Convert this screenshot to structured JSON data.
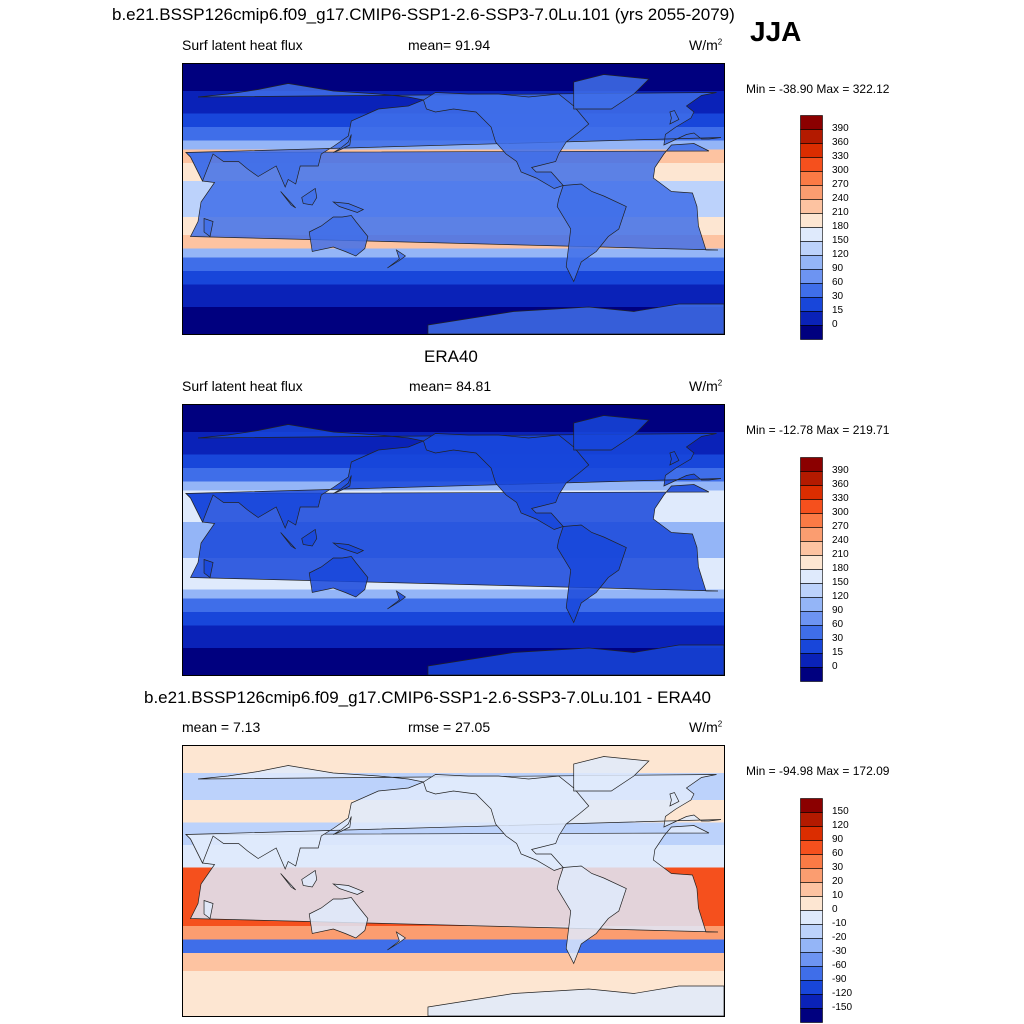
{
  "season": "JJA",
  "panels": [
    {
      "title": "b.e21.BSSP126cmip6.f09_g17.CMIP6-SSP1-2.6-SSP3-7.0Lu.101 (yrs 2055-2079)",
      "left": "Surf latent heat flux",
      "center": "mean=  91.94",
      "units": "W/m",
      "units_sup": "2",
      "minmax": "Min = -38.90 Max = 322.12"
    },
    {
      "title": "ERA40",
      "left": "Surf latent heat flux",
      "center": "mean=  84.81",
      "units": "W/m",
      "units_sup": "2",
      "minmax": "Min = -12.78 Max = 219.71"
    },
    {
      "title": "b.e21.BSSP126cmip6.f09_g17.CMIP6-SSP1-2.6-SSP3-7.0Lu.101 - ERA40",
      "left": "mean =   7.13",
      "center": "rmse =  27.05",
      "units": "W/m",
      "units_sup": "2",
      "minmax": "Min = -94.98 Max = 172.09"
    }
  ],
  "chart_data": [
    {
      "type": "heatmap",
      "title": "b.e21.BSSP126cmip6.f09_g17.CMIP6-SSP1-2.6-SSP3-7.0Lu.101 (yrs 2055-2079)",
      "variable": "Surf latent heat flux",
      "mean": 91.94,
      "min": -38.9,
      "max": 322.12,
      "levels": [
        "390",
        "360",
        "330",
        "300",
        "270",
        "240",
        "210",
        "180",
        "150",
        "120",
        "90",
        "60",
        "30",
        "15",
        "0"
      ],
      "colors": [
        "#8b0000",
        "#b31a00",
        "#db2d00",
        "#f5501d",
        "#fb7a45",
        "#fb9d70",
        "#fdc3a1",
        "#fde6d2",
        "#dfeafc",
        "#bcd2fb",
        "#94b5f7",
        "#6d94f2",
        "#3f6ee9",
        "#1846da",
        "#0a22b8",
        "#00007f"
      ]
    },
    {
      "type": "heatmap",
      "title": "ERA40",
      "variable": "Surf latent heat flux",
      "mean": 84.81,
      "min": -12.78,
      "max": 219.71,
      "levels": [
        "390",
        "360",
        "330",
        "300",
        "270",
        "240",
        "210",
        "180",
        "150",
        "120",
        "90",
        "60",
        "30",
        "15",
        "0"
      ],
      "colors": [
        "#8b0000",
        "#b31a00",
        "#db2d00",
        "#f5501d",
        "#fb7a45",
        "#fb9d70",
        "#fdc3a1",
        "#fde6d2",
        "#dfeafc",
        "#bcd2fb",
        "#94b5f7",
        "#6d94f2",
        "#3f6ee9",
        "#1846da",
        "#0a22b8",
        "#00007f"
      ]
    },
    {
      "type": "heatmap",
      "title": "b.e21.BSSP126cmip6.f09_g17.CMIP6-SSP1-2.6-SSP3-7.0Lu.101 - ERA40",
      "mean": 7.13,
      "rmse": 27.05,
      "min": -94.98,
      "max": 172.09,
      "levels": [
        "150",
        "120",
        "90",
        "60",
        "30",
        "20",
        "10",
        "0",
        "-10",
        "-20",
        "-30",
        "-60",
        "-90",
        "-120",
        "-150"
      ],
      "colors": [
        "#8b0000",
        "#b31a00",
        "#db2d00",
        "#f5501d",
        "#fb7a45",
        "#fb9d70",
        "#fdc3a1",
        "#fde6d2",
        "#dfeafc",
        "#bcd2fb",
        "#94b5f7",
        "#6d94f2",
        "#3f6ee9",
        "#1846da",
        "#0a22b8",
        "#00007f"
      ]
    }
  ]
}
